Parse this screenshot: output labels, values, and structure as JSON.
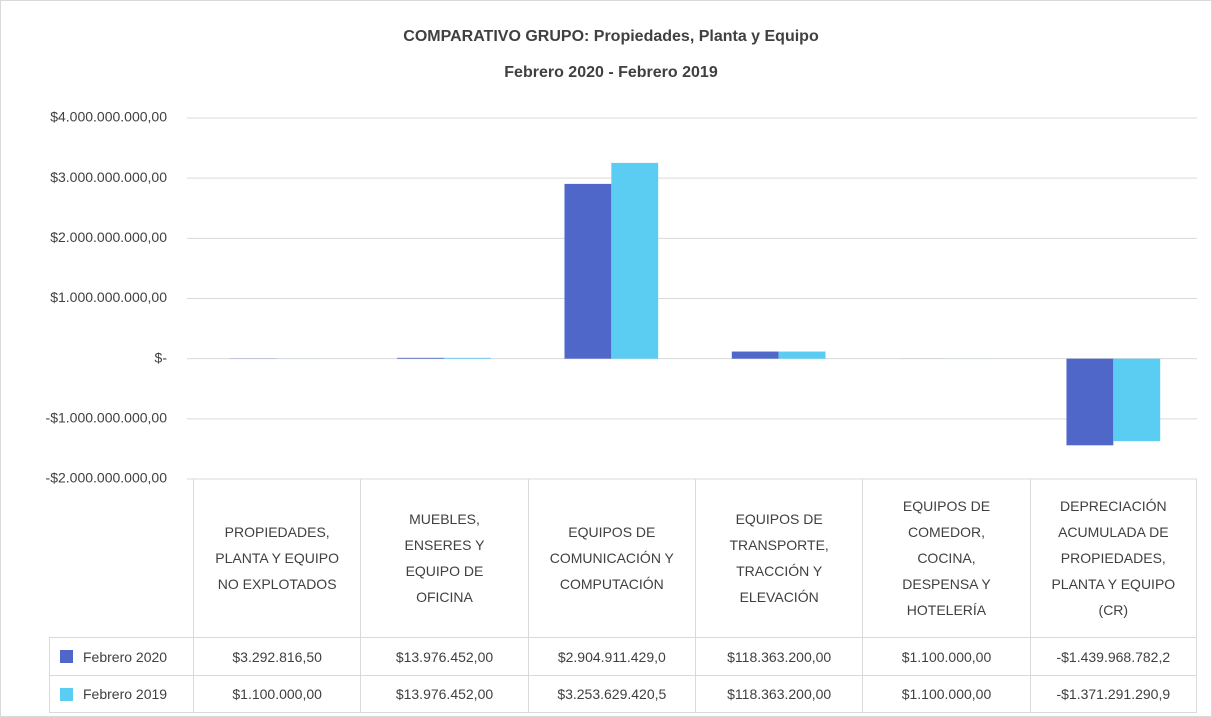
{
  "chart_data": {
    "type": "bar",
    "title": "COMPARATIVO GRUPO: Propiedades, Planta y Equipo",
    "subtitle": "Febrero 2020 - Febrero 2019",
    "categories": [
      "PROPIEDADES, PLANTA Y EQUIPO NO EXPLOTADOS",
      "MUEBLES, ENSERES Y EQUIPO DE OFICINA",
      "EQUIPOS DE COMUNICACIÓN Y COMPUTACIÓN",
      "EQUIPOS DE TRANSPORTE, TRACCIÓN Y ELEVACIÓN",
      "EQUIPOS DE COMEDOR, COCINA, DESPENSA Y HOTELERÍA",
      "DEPRECIACIÓN ACUMULADA DE PROPIEDADES, PLANTA Y EQUIPO (CR)"
    ],
    "series": [
      {
        "name": "Febrero 2020",
        "color": "#4f67c9",
        "values": [
          3292816.5,
          13976452,
          2904911429.0,
          118363200,
          1100000,
          -1439968782.2
        ],
        "value_labels": [
          "$3.292.816,50",
          "$13.976.452,00",
          "$2.904.911.429,0",
          "$118.363.200,00",
          "$1.100.000,00",
          "-$1.439.968.782,2"
        ]
      },
      {
        "name": "Febrero 2019",
        "color": "#5bcdf3",
        "values": [
          1100000,
          13976452,
          3253629420.5,
          118363200,
          1100000,
          -1371291290.9
        ],
        "value_labels": [
          "$1.100.000,00",
          "$13.976.452,00",
          "$3.253.629.420,5",
          "$118.363.200,00",
          "$1.100.000,00",
          "-$1.371.291.290,9"
        ]
      }
    ],
    "ylim": [
      -2000000000,
      4000000000
    ],
    "yticks": [
      {
        "value": -2000000000,
        "label": "-$2.000.000.000,00"
      },
      {
        "value": -1000000000,
        "label": "-$1.000.000.000,00"
      },
      {
        "value": 0,
        "label": "$-"
      },
      {
        "value": 1000000000,
        "label": "$1.000.000.000,00"
      },
      {
        "value": 2000000000,
        "label": "$2.000.000.000,00"
      },
      {
        "value": 3000000000,
        "label": "$3.000.000.000,00"
      },
      {
        "value": 4000000000,
        "label": "$4.000.000.000,00"
      }
    ],
    "grid": true
  }
}
